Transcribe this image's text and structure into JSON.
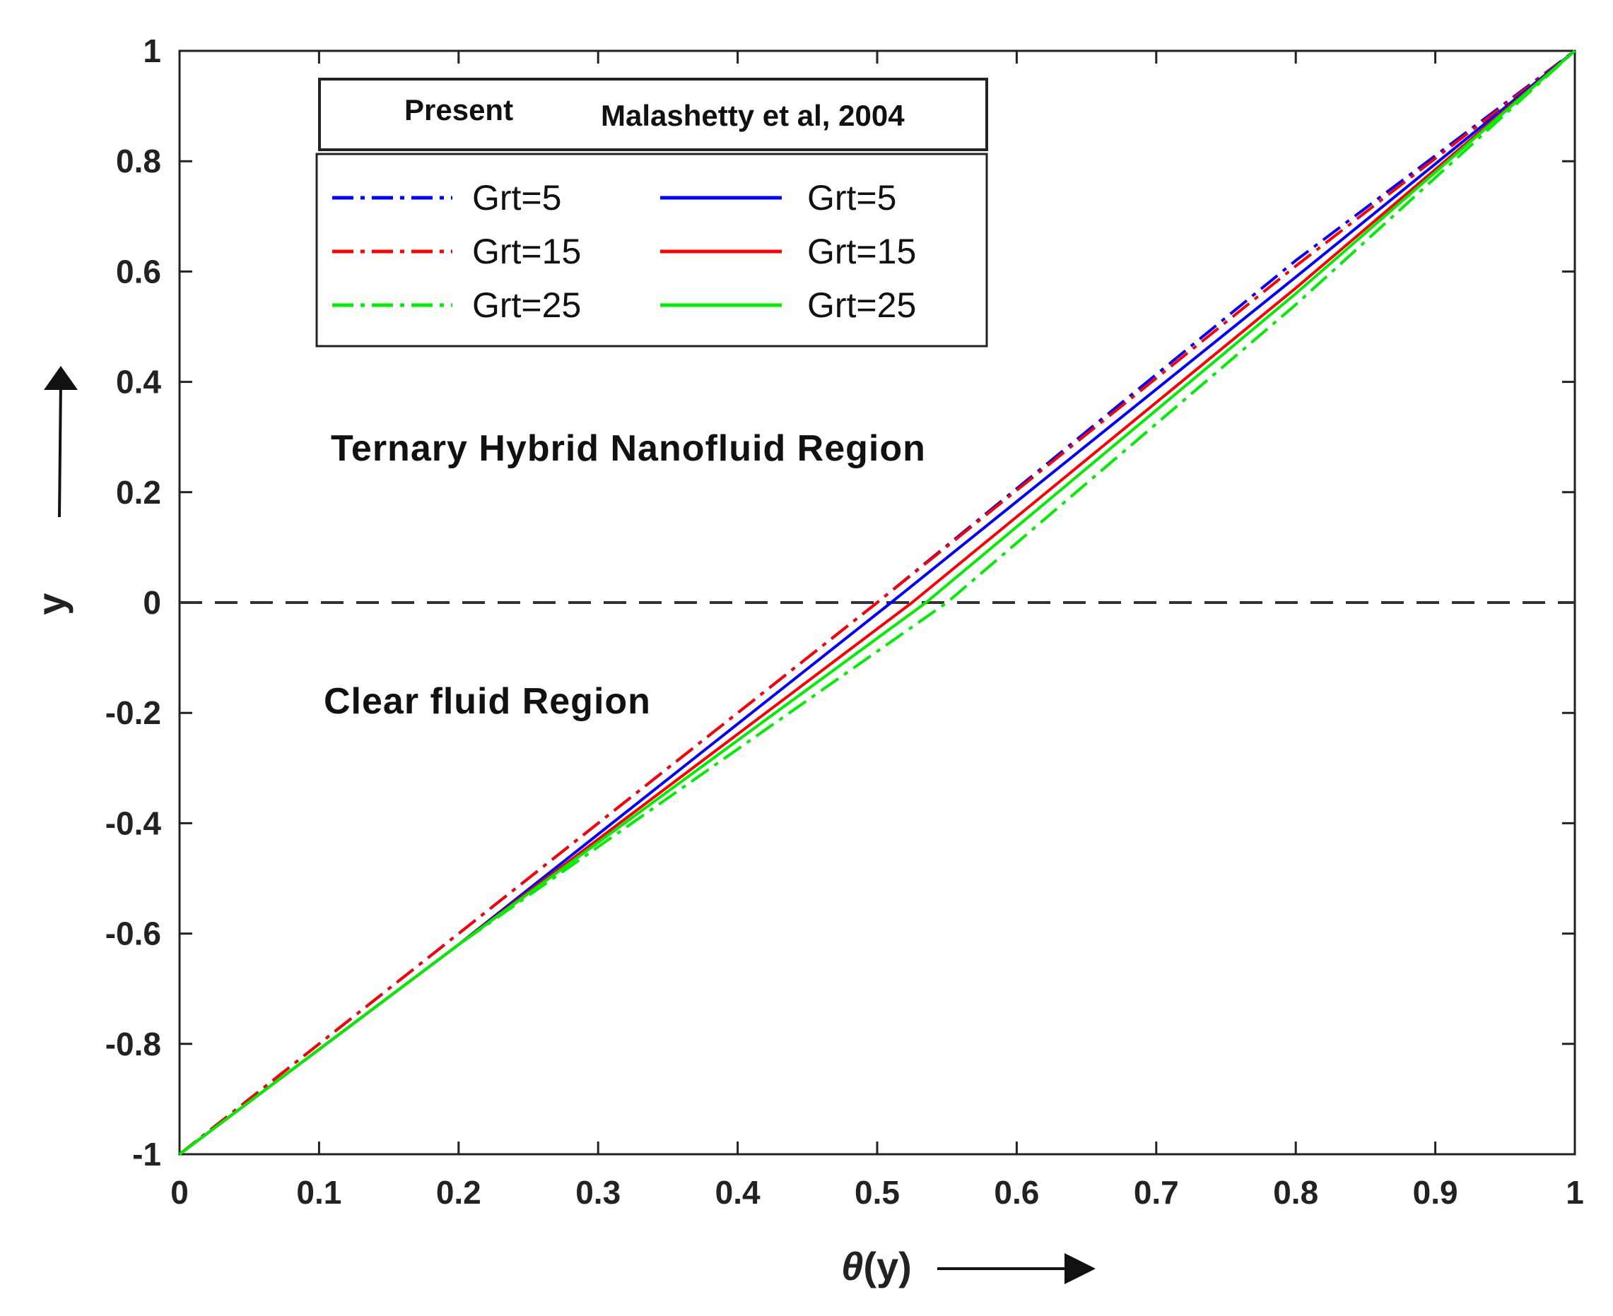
{
  "chart_data": {
    "type": "line",
    "xlabel_symbol": "θ",
    "xlabel_rest": "(y)",
    "ylabel": "y",
    "xlim": [
      0,
      1
    ],
    "ylim": [
      -1,
      1
    ],
    "xticks": [
      "0",
      "0.1",
      "0.2",
      "0.3",
      "0.4",
      "0.5",
      "0.6",
      "0.7",
      "0.8",
      "0.9",
      "1"
    ],
    "yticks": [
      "-1",
      "-0.8",
      "-0.6",
      "-0.4",
      "-0.2",
      "0",
      "0.2",
      "0.4",
      "0.6",
      "0.8",
      "1"
    ],
    "grid": false,
    "legend_placement": "top-left",
    "legend_headers": [
      "Present",
      "Malashetty et al, 2004"
    ],
    "annotations": {
      "upper": "Ternary Hybrid Nanofluid Region",
      "lower": "Clear fluid Region"
    },
    "interface_y": 0,
    "series": [
      {
        "name": "Grt=5",
        "group": "Present",
        "color": "#0000ff",
        "style": "dashdot",
        "x": [
          0,
          0.2,
          0.5,
          0.8,
          1
        ],
        "y": [
          -1,
          -0.6,
          0.0,
          0.62,
          1
        ]
      },
      {
        "name": "Grt=15",
        "group": "Present",
        "color": "#ff0000",
        "style": "dashdot",
        "x": [
          0,
          0.2,
          0.5,
          0.8,
          1
        ],
        "y": [
          -1,
          -0.6,
          0.0,
          0.61,
          1
        ]
      },
      {
        "name": "Grt=25",
        "group": "Present",
        "color": "#00ee00",
        "style": "dashdot",
        "x": [
          0,
          0.2,
          0.55,
          0.8,
          1
        ],
        "y": [
          -1,
          -0.62,
          0.0,
          0.54,
          1
        ]
      },
      {
        "name": "Grt=5",
        "group": "Malashetty et al, 2004",
        "color": "#0000ff",
        "style": "solid",
        "x": [
          0,
          0.2,
          0.51,
          0.8,
          1
        ],
        "y": [
          -1,
          -0.62,
          0.0,
          0.59,
          1
        ]
      },
      {
        "name": "Grt=15",
        "group": "Malashetty et al, 2004",
        "color": "#ff0000",
        "style": "solid",
        "x": [
          0,
          0.2,
          0.525,
          0.8,
          1
        ],
        "y": [
          -1,
          -0.62,
          0.0,
          0.57,
          1
        ]
      },
      {
        "name": "Grt=25",
        "group": "Malashetty et al, 2004",
        "color": "#00ee00",
        "style": "solid",
        "x": [
          0,
          0.2,
          0.535,
          0.8,
          1
        ],
        "y": [
          -1,
          -0.62,
          0.0,
          0.56,
          1
        ]
      }
    ]
  }
}
